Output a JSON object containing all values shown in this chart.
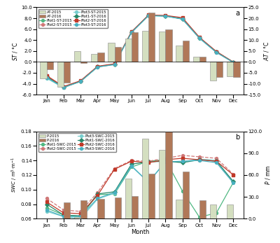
{
  "months": [
    "Jan",
    "Feb",
    "Mar",
    "Apr",
    "May",
    "Jun",
    "Jul",
    "Aug",
    "Sep",
    "Oct",
    "Nov",
    "Dec"
  ],
  "AT_2015": [
    -7.5,
    -11.5,
    4.8,
    3.8,
    8.8,
    10.8,
    14.2,
    13.8,
    7.5,
    2.5,
    -8.5,
    -6.5
  ],
  "AT_2016": [
    -3.5,
    -9.5,
    -0.5,
    4.2,
    7.0,
    13.5,
    22.5,
    14.8,
    9.8,
    2.5,
    -7.0,
    -6.8
  ],
  "Plot1_ST_2015": [
    -2.8,
    -4.65,
    -3.6,
    -0.9,
    -0.45,
    5.5,
    8.5,
    8.4,
    7.9,
    4.4,
    1.85,
    -0.05
  ],
  "Plot2_ST_2015": [
    -2.6,
    -4.7,
    -3.5,
    -0.85,
    -0.38,
    5.42,
    8.52,
    8.45,
    7.88,
    4.38,
    1.78,
    -0.08
  ],
  "Plot3_ST_2015": [
    -3.0,
    -4.75,
    -3.55,
    -0.95,
    -0.5,
    5.38,
    8.45,
    8.38,
    7.82,
    4.3,
    1.72,
    -0.12
  ],
  "Plot1_ST_2016": [
    -2.7,
    -4.58,
    -3.52,
    -0.88,
    -0.42,
    5.46,
    8.53,
    8.43,
    7.87,
    4.42,
    1.82,
    -0.07
  ],
  "Plot2_ST_2016": [
    -2.5,
    -4.52,
    -3.45,
    -0.8,
    -0.35,
    5.52,
    8.58,
    8.5,
    8.1,
    4.5,
    1.9,
    -0.04
  ],
  "Plot3_ST_2016": [
    -2.85,
    -4.68,
    -3.58,
    -0.92,
    -0.48,
    5.4,
    8.47,
    8.4,
    7.85,
    4.35,
    1.75,
    -0.1
  ],
  "P_2015": [
    0.0,
    0.0,
    2.0,
    0.0,
    0.0,
    55.0,
    110.0,
    95.0,
    26.0,
    0.0,
    20.0,
    20.0
  ],
  "P_2016": [
    0.0,
    22.0,
    25.0,
    27.0,
    29.0,
    31.0,
    62.0,
    120.0,
    65.0,
    25.0,
    0.0,
    0.0
  ],
  "Plot1_SWC_2015": [
    0.075,
    0.065,
    0.063,
    0.093,
    0.094,
    0.131,
    0.139,
    0.141,
    0.098,
    0.062,
    0.068,
    0.11
  ],
  "Plot2_SWC_2015": [
    0.088,
    0.072,
    0.07,
    0.096,
    0.129,
    0.14,
    0.139,
    0.143,
    0.147,
    0.145,
    0.143,
    0.121
  ],
  "Plot3_SWC_2015": [
    0.07,
    0.063,
    0.06,
    0.087,
    0.095,
    0.133,
    0.11,
    0.139,
    0.138,
    0.142,
    0.14,
    0.11
  ],
  "Plot1_SWC_2016": [
    0.08,
    0.065,
    0.064,
    0.094,
    0.097,
    0.135,
    0.138,
    0.139,
    0.137,
    0.141,
    0.139,
    0.111
  ],
  "Plot2_SWC_2016": [
    0.083,
    0.068,
    0.067,
    0.092,
    0.128,
    0.139,
    0.137,
    0.141,
    0.143,
    0.141,
    0.139,
    0.12
  ],
  "Plot3_SWC_2016": [
    0.072,
    0.063,
    0.063,
    0.088,
    0.096,
    0.132,
    0.11,
    0.138,
    0.139,
    0.14,
    0.137,
    0.109
  ],
  "bar_color_2015": "#d4dfc0",
  "bar_color_2016": "#b07858",
  "c_p1_2015": "#50b882",
  "c_p2_2015": "#d07878",
  "c_p3_2015": "#78cece",
  "c_p1_2016": "#28886a",
  "c_p2_2016": "#c03828",
  "c_p3_2016": "#48b0c0",
  "ST_ylim": [
    -6.0,
    10.0
  ],
  "AT_ylim": [
    -15.0,
    25.0
  ],
  "SWC_ylim": [
    0.06,
    0.18
  ],
  "P_ylim": [
    0.0,
    120.0
  ],
  "ST_yticks": [
    -6.0,
    -4.0,
    -2.0,
    0.0,
    2.0,
    4.0,
    6.0,
    8.0,
    10.0
  ],
  "AT_yticks": [
    -15.0,
    -10.0,
    -5.0,
    0.0,
    5.0,
    10.0,
    15.0,
    20.0,
    25.0
  ],
  "SWC_yticks": [
    0.06,
    0.08,
    0.1,
    0.12,
    0.14,
    0.16,
    0.18
  ],
  "P_yticks": [
    0.0,
    30.0,
    60.0,
    90.0,
    120.0
  ]
}
